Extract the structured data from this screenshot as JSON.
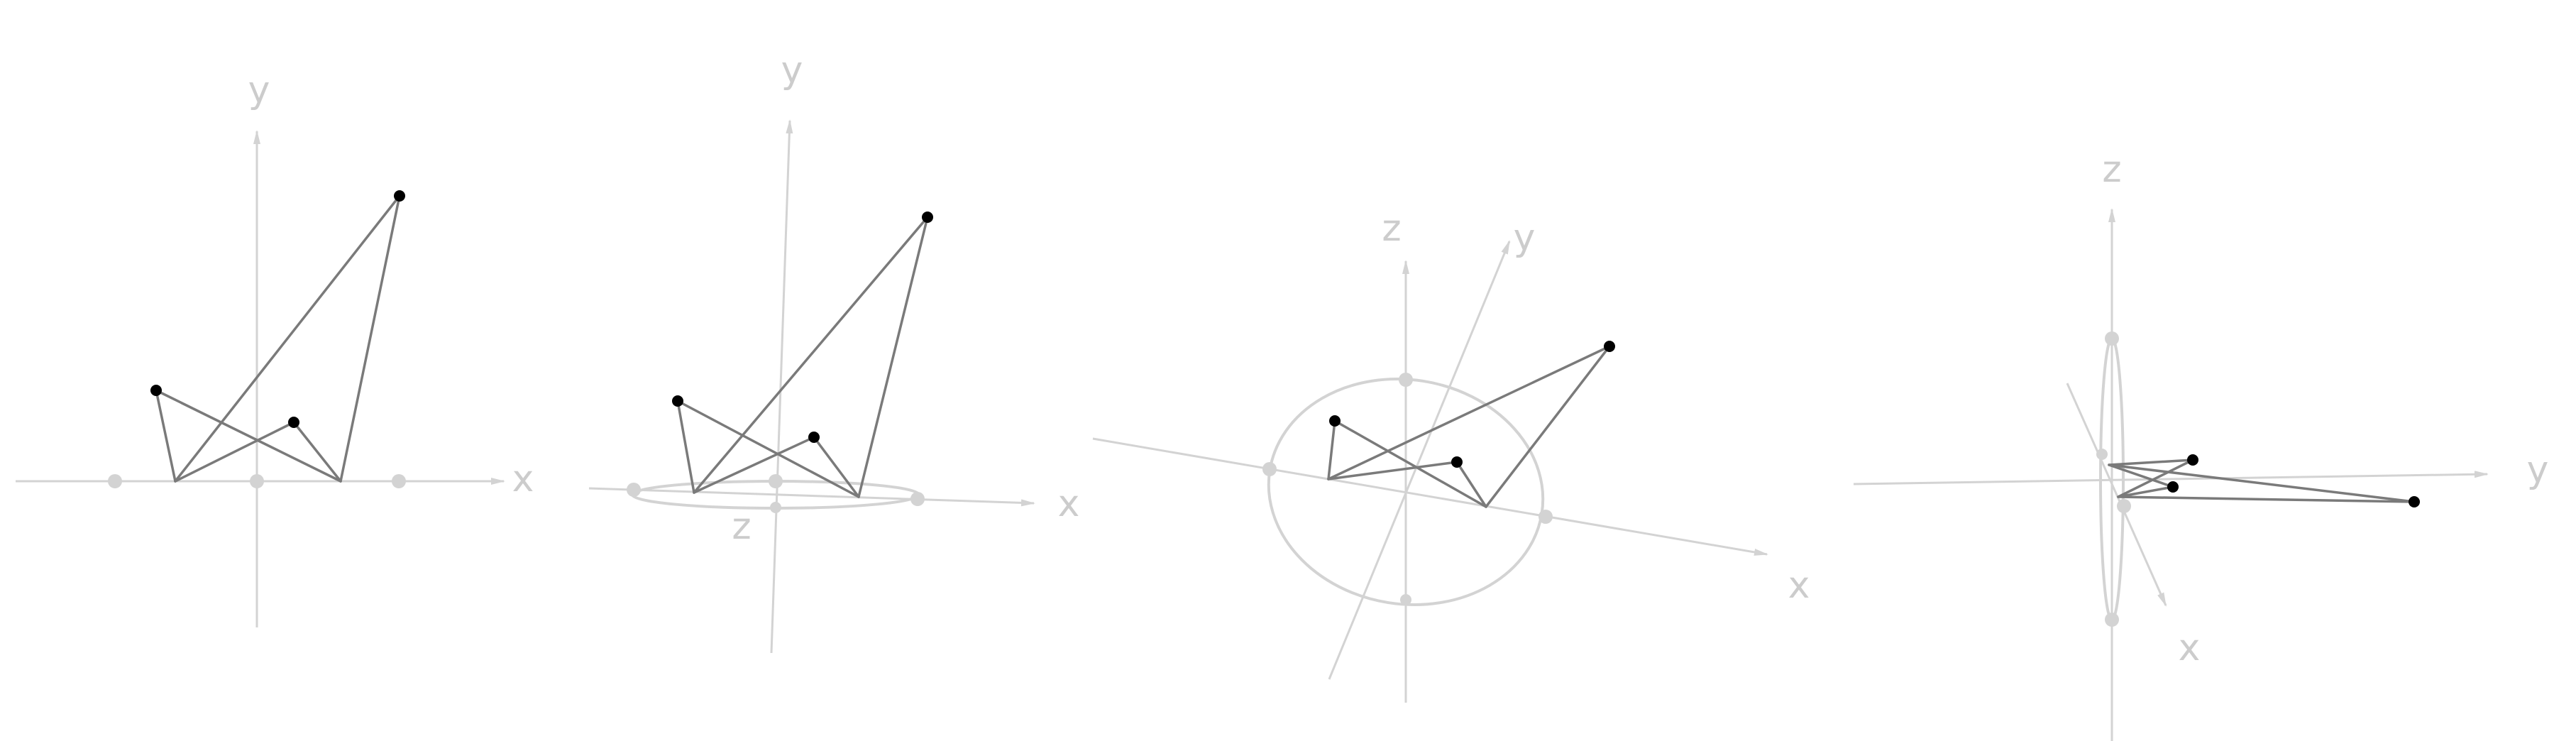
{
  "figure": {
    "description_label": "Four projections of the same point configuration",
    "colors": {
      "axis": "#d3d3d3",
      "axis_label": "#cccccc",
      "edge": "#7a7a7a",
      "vertex": "#000000",
      "background": "#ffffff"
    }
  },
  "panels": [
    {
      "id": "panel-1",
      "axis_labels": {
        "x": "x",
        "y": "y"
      }
    },
    {
      "id": "panel-2",
      "axis_labels": {
        "x": "x",
        "y": "y",
        "z": "z"
      }
    },
    {
      "id": "panel-3",
      "axis_labels": {
        "x": "x",
        "y": "y",
        "z": "z"
      }
    },
    {
      "id": "panel-4",
      "axis_labels": {
        "x": "x",
        "y": "y",
        "z": "z"
      }
    }
  ]
}
